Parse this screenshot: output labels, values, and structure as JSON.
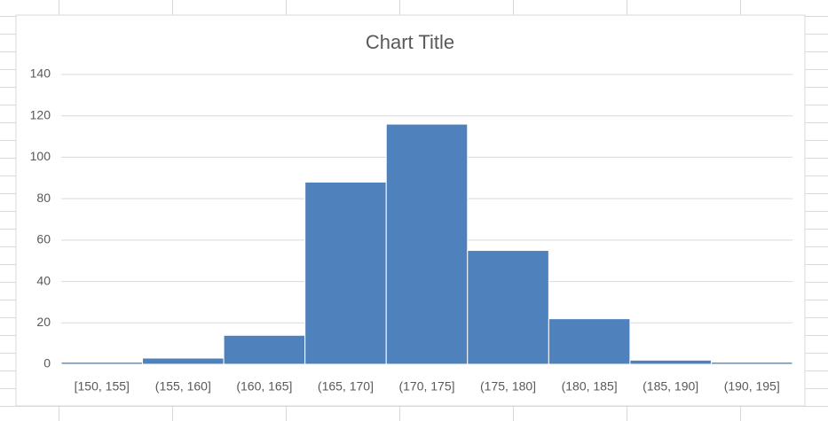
{
  "chart_data": {
    "type": "bar",
    "title": "Chart Title",
    "categories": [
      "[150, 155]",
      "(155, 160]",
      "(160, 165]",
      "(165, 170]",
      "(170, 175]",
      "(175, 180]",
      "(180, 185]",
      "(185, 190]",
      "(190, 195]"
    ],
    "values": [
      1,
      3,
      14,
      88,
      116,
      55,
      22,
      2,
      1
    ],
    "color": "#4f81bd",
    "ylim": [
      0,
      140
    ],
    "yticks": [
      0,
      20,
      40,
      60,
      80,
      100,
      120,
      140
    ],
    "grid": true
  }
}
